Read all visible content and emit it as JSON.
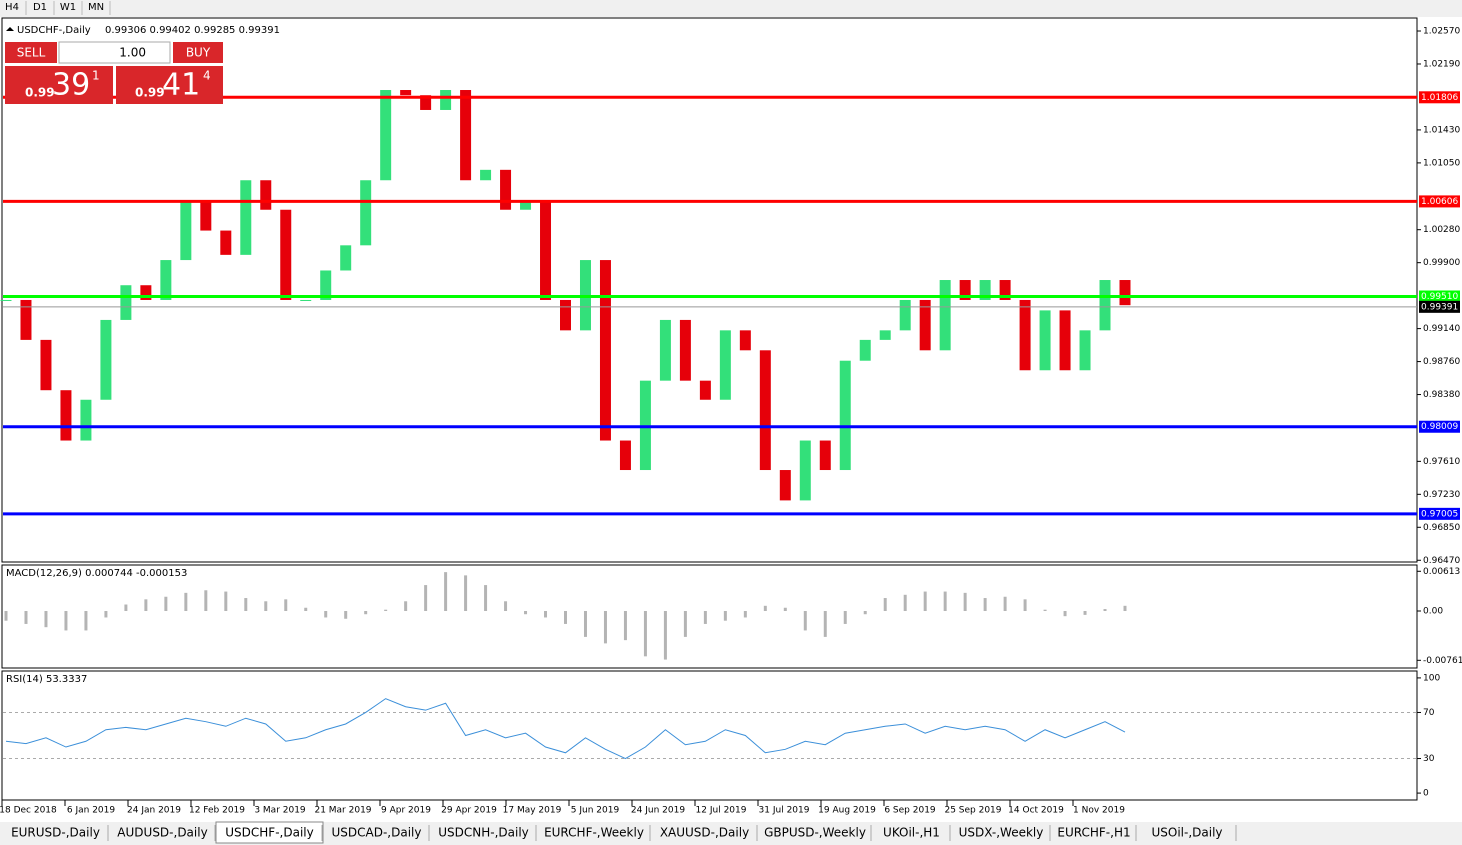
{
  "toolbar": [
    "H4",
    "D1",
    "W1",
    "MN"
  ],
  "trade_panel": {
    "sell": "SELL",
    "lot": "1.00",
    "buy": "BUY",
    "bid": {
      "big": "0.99",
      "pips": "39",
      "frac": "1"
    },
    "ask": {
      "big": "0.99",
      "pips": "41",
      "frac": "4"
    }
  },
  "tabs": [
    "EURUSD-,Daily",
    "AUDUSD-,Daily",
    "USDCHF-,Daily",
    "USDCAD-,Daily",
    "USDCNH-,Daily",
    "EURCHF-,Weekly",
    "XAUUSD-,Daily",
    "GBPUSD-,Weekly",
    "UKOil-,H1",
    "USDX-,Weekly",
    "EURCHF-,H1",
    "USOil-,Daily"
  ],
  "chart_data": [
    {
      "type": "candlestick",
      "title": "USDCHF-,Daily",
      "ohlc_text": "0.99306 0.99402 0.99285 0.99391",
      "up_color": "#33e07a",
      "down_color": "#e6000a",
      "values": [
        0.9947,
        0.9901,
        0.9843,
        0.9785,
        0.9832,
        0.9924,
        0.9964,
        0.9947,
        0.9993,
        1.0062,
        1.0027,
        0.9999,
        1.0085,
        1.0051,
        0.9947,
        0.9947,
        0.9981,
        1.001,
        1.0085,
        1.0189,
        1.0183,
        1.0166,
        1.0189,
        1.0085,
        1.0097,
        1.0051,
        1.0062,
        0.9947,
        0.9912,
        0.9993,
        0.9785,
        0.9751,
        0.9854,
        0.9924,
        0.9854,
        0.9832,
        0.9912,
        0.9889,
        0.9751,
        0.9716,
        0.9785,
        0.9751,
        0.9877,
        0.9901,
        0.9912,
        0.9947,
        0.9889,
        0.997,
        0.9947,
        0.997,
        0.9947,
        0.9866,
        0.9935,
        0.9866,
        0.9912,
        0.997,
        0.9941
      ],
      "date_labels": [
        "18 Dec 2018",
        "6 Jan 2019",
        "24 Jan 2019",
        "12 Feb 2019",
        "3 Mar 2019",
        "21 Mar 2019",
        "9 Apr 2019",
        "29 Apr 2019",
        "17 May 2019",
        "5 Jun 2019",
        "24 Jun 2019",
        "12 Jul 2019",
        "31 Jul 2019",
        "19 Aug 2019",
        "6 Sep 2019",
        "25 Sep 2019",
        "14 Oct 2019",
        "1 Nov 2019"
      ],
      "ylim": [
        0.9645,
        1.0272
      ],
      "yticks": [
        {
          "value": 1.0257,
          "label": "1.02570"
        },
        {
          "value": 1.0219,
          "label": "1.02190"
        },
        {
          "value": 1.0143,
          "label": "1.01430"
        },
        {
          "value": 1.0105,
          "label": "1.01050"
        },
        {
          "value": 1.0028,
          "label": "1.00280"
        },
        {
          "value": 0.999,
          "label": "0.99900"
        },
        {
          "value": 0.9914,
          "label": "0.99140"
        },
        {
          "value": 0.9876,
          "label": "0.98760"
        },
        {
          "value": 0.9838,
          "label": "0.98380"
        },
        {
          "value": 0.9761,
          "label": "0.97610"
        },
        {
          "value": 0.9723,
          "label": "0.97230"
        },
        {
          "value": 0.9685,
          "label": "0.96850"
        },
        {
          "value": 0.9647,
          "label": "0.96470"
        }
      ],
      "levels": [
        {
          "value": 1.01806,
          "label": "1.01806",
          "color": "#ff0000"
        },
        {
          "value": 1.00606,
          "label": "1.00606",
          "color": "#ff0000"
        },
        {
          "value": 0.9951,
          "label": "0.99510",
          "color": "#00ff00"
        },
        {
          "value": 0.98009,
          "label": "0.98009",
          "color": "#0000ff"
        },
        {
          "value": 0.97005,
          "label": "0.97005",
          "color": "#0000ff"
        }
      ],
      "current": {
        "value": 0.99391,
        "label": "0.99391"
      }
    },
    {
      "type": "histogram",
      "title": "MACD(12,26,9) 0.000744 -0.000153",
      "color": "#b4b4b4",
      "values": [
        -0.0015,
        -0.002,
        -0.0025,
        -0.003,
        -0.003,
        -0.001,
        0.001,
        0.0018,
        0.0022,
        0.0028,
        0.0032,
        0.003,
        0.002,
        0.0015,
        0.0018,
        0.0005,
        -0.001,
        -0.0012,
        -0.0005,
        0.0002,
        0.0015,
        0.004,
        0.006,
        0.0055,
        0.004,
        0.0015,
        -0.0005,
        -0.001,
        -0.002,
        -0.004,
        -0.005,
        -0.0045,
        -0.007,
        -0.0075,
        -0.004,
        -0.002,
        -0.0015,
        -0.001,
        0.0008,
        0.0005,
        -0.003,
        -0.004,
        -0.002,
        -0.0005,
        0.002,
        0.0025,
        0.003,
        0.003,
        0.0028,
        0.002,
        0.0022,
        0.0018,
        0.0002,
        -0.0008,
        -0.0006,
        0.0003,
        0.0008
      ],
      "ylim": [
        -0.0088,
        0.0071
      ],
      "yticks": [
        0.00613,
        {
          "value": 0,
          "label": "0.00"
        },
        -0.007612
      ]
    },
    {
      "type": "line",
      "title": "RSI(14) 53.3337",
      "color": "#3b8fd9",
      "values": [
        45,
        43,
        48,
        40,
        45,
        55,
        57,
        55,
        60,
        65,
        62,
        58,
        65,
        60,
        45,
        48,
        55,
        60,
        70,
        82,
        75,
        72,
        78,
        50,
        55,
        48,
        52,
        40,
        35,
        48,
        38,
        30,
        40,
        55,
        42,
        45,
        55,
        50,
        35,
        38,
        45,
        42,
        52,
        55,
        58,
        60,
        52,
        58,
        55,
        58,
        55,
        45,
        55,
        48,
        55,
        62,
        53
      ],
      "ylim": [
        -6,
        106
      ],
      "yticks": [
        100,
        70,
        30,
        0
      ],
      "levels": [
        70,
        30
      ]
    }
  ]
}
